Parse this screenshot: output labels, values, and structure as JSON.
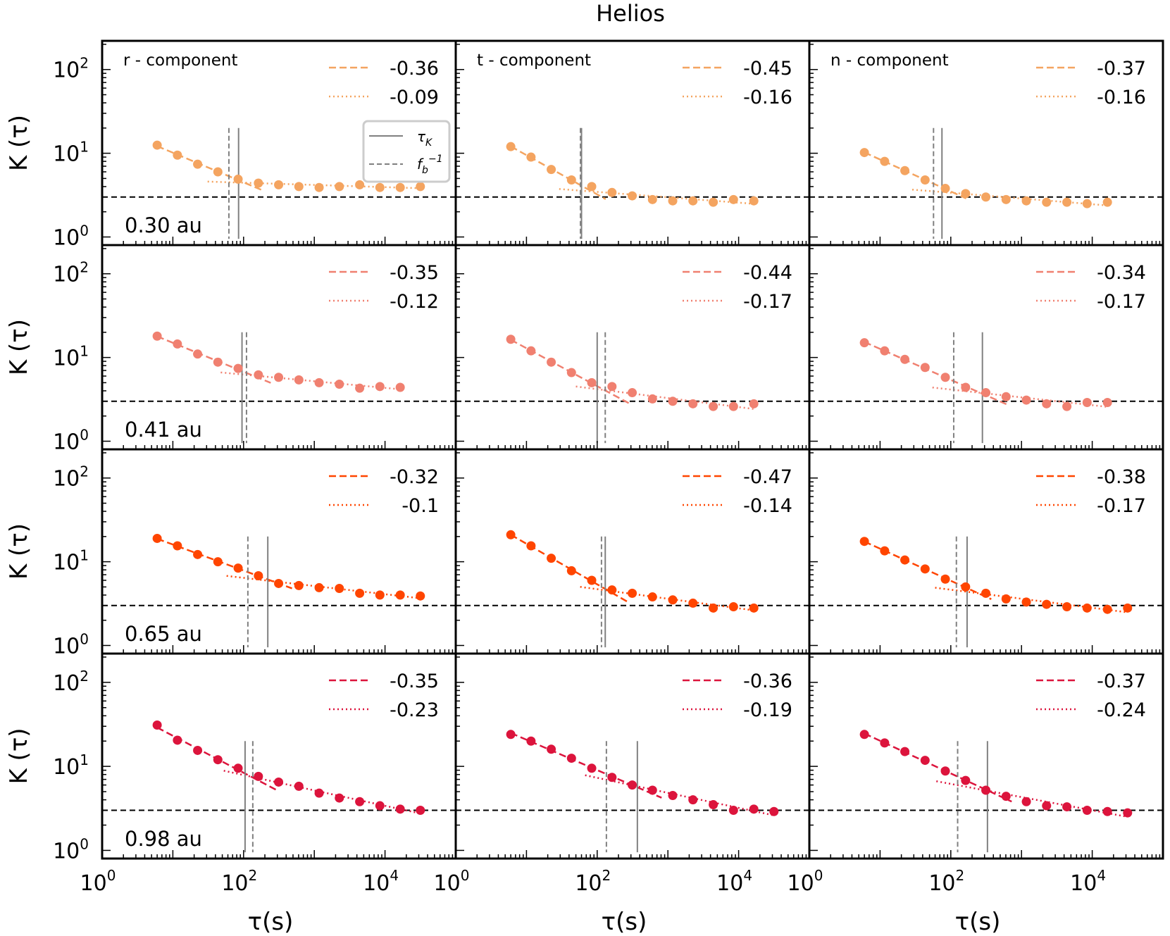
{
  "figure": {
    "title": "Helios"
  },
  "chart_data": {
    "type": "scatter",
    "title": "Helios",
    "xlabel": "τ(s)",
    "ylabel": "K (τ)",
    "xscale": "log",
    "yscale": "log",
    "xlim": [
      1,
      100000
    ],
    "ylim": [
      0.8,
      220
    ],
    "x_tick_labels": [
      "10",
      "10",
      "10",
      "10",
      "10",
      "10",
      "10",
      "10",
      "10"
    ],
    "x_tick_exponents": [
      "0",
      "2",
      "4",
      "0",
      "2",
      "4",
      "0",
      "2",
      "4"
    ],
    "y_tick_labels": [
      "10",
      "10",
      "10"
    ],
    "y_tick_exponents": [
      "0",
      "1",
      "2"
    ],
    "reference_line": {
      "y": 3,
      "style": "black dashed"
    },
    "legend_markers": {
      "tau_k": "τK",
      "fb_inv": "fb−1"
    },
    "legend_text": {
      "tau_k": {
        "base": "τ",
        "sub": "K"
      },
      "fb_inv": {
        "base": "f",
        "sub": "b",
        "sup": "−1"
      }
    },
    "columns": [
      "r - component",
      "t - component",
      "n - component"
    ],
    "rows": [
      {
        "distance": "0.30 au",
        "color": "#f4a460",
        "panels": [
          {
            "component": "r",
            "slope_dashed": "-0.36",
            "slope_dotted": "-0.09",
            "tau_k": 85,
            "fb_inv": 62,
            "points": [
              [
                6,
                12.5
              ],
              [
                11.6,
                9.5
              ],
              [
                22.4,
                7.4
              ],
              [
                43.3,
                6.0
              ],
              [
                83.7,
                4.9
              ],
              [
                162,
                4.4
              ],
              [
                313,
                4.2
              ],
              [
                605,
                4.0
              ],
              [
                1170,
                3.9
              ],
              [
                2260,
                4.0
              ],
              [
                4380,
                4.2
              ],
              [
                8460,
                3.9
              ],
              [
                16400,
                3.9
              ],
              [
                31600,
                4.0
              ]
            ]
          },
          {
            "component": "t",
            "slope_dashed": "-0.45",
            "slope_dotted": "-0.16",
            "tau_k": 60,
            "fb_inv": 58,
            "points": [
              [
                6,
                12.0
              ],
              [
                11.6,
                9.0
              ],
              [
                22.4,
                6.4
              ],
              [
                43.3,
                4.8
              ],
              [
                83.7,
                4.0
              ],
              [
                162,
                3.4
              ],
              [
                313,
                3.1
              ],
              [
                605,
                2.8
              ],
              [
                1170,
                2.7
              ],
              [
                2260,
                2.7
              ],
              [
                4380,
                2.6
              ],
              [
                8460,
                2.8
              ],
              [
                16400,
                2.7
              ]
            ]
          },
          {
            "component": "n",
            "slope_dashed": "-0.37",
            "slope_dotted": "-0.16",
            "tau_k": 75,
            "fb_inv": 57,
            "points": [
              [
                6,
                10.2
              ],
              [
                11.6,
                8.0
              ],
              [
                22.4,
                6.2
              ],
              [
                43.3,
                4.8
              ],
              [
                83.7,
                3.8
              ],
              [
                162,
                3.3
              ],
              [
                313,
                3.0
              ],
              [
                605,
                2.8
              ],
              [
                1170,
                2.7
              ],
              [
                2260,
                2.6
              ],
              [
                4380,
                2.6
              ],
              [
                8460,
                2.5
              ],
              [
                16400,
                2.6
              ]
            ]
          }
        ]
      },
      {
        "distance": "0.41 au",
        "color": "#f08070",
        "panels": [
          {
            "component": "r",
            "slope_dashed": "-0.35",
            "slope_dotted": "-0.12",
            "tau_k": 95,
            "fb_inv": 110,
            "points": [
              [
                6,
                18.0
              ],
              [
                11.6,
                14.5
              ],
              [
                22.4,
                11.0
              ],
              [
                43.3,
                8.8
              ],
              [
                83.7,
                7.4
              ],
              [
                162,
                6.2
              ],
              [
                313,
                5.8
              ],
              [
                605,
                5.4
              ],
              [
                1170,
                5.0
              ],
              [
                2260,
                4.8
              ],
              [
                4380,
                4.3
              ],
              [
                8460,
                4.5
              ],
              [
                16400,
                4.4
              ]
            ]
          },
          {
            "component": "t",
            "slope_dashed": "-0.44",
            "slope_dotted": "-0.17",
            "tau_k": 100,
            "fb_inv": 130,
            "points": [
              [
                6,
                16.5
              ],
              [
                11.6,
                12.0
              ],
              [
                22.4,
                8.8
              ],
              [
                43.3,
                6.6
              ],
              [
                83.7,
                5.0
              ],
              [
                162,
                4.5
              ],
              [
                313,
                3.8
              ],
              [
                605,
                3.2
              ],
              [
                1170,
                3.0
              ],
              [
                2260,
                2.8
              ],
              [
                4380,
                2.6
              ],
              [
                8460,
                2.6
              ],
              [
                16400,
                2.8
              ]
            ]
          },
          {
            "component": "n",
            "slope_dashed": "-0.34",
            "slope_dotted": "-0.17",
            "tau_k": 280,
            "fb_inv": 110,
            "points": [
              [
                6,
                15.0
              ],
              [
                11.6,
                12.0
              ],
              [
                22.4,
                9.5
              ],
              [
                43.3,
                7.6
              ],
              [
                83.7,
                5.8
              ],
              [
                162,
                4.4
              ],
              [
                313,
                3.8
              ],
              [
                605,
                3.4
              ],
              [
                1170,
                3.1
              ],
              [
                2260,
                2.8
              ],
              [
                4380,
                2.6
              ],
              [
                8460,
                2.9
              ],
              [
                16400,
                2.9
              ]
            ]
          }
        ]
      },
      {
        "distance": "0.65 au",
        "color": "#ff4500",
        "panels": [
          {
            "component": "r",
            "slope_dashed": "-0.32",
            "slope_dotted": "-0.1",
            "tau_k": 220,
            "fb_inv": 115,
            "points": [
              [
                6,
                19.0
              ],
              [
                11.6,
                15.5
              ],
              [
                22.4,
                12.2
              ],
              [
                43.3,
                10.0
              ],
              [
                83.7,
                8.4
              ],
              [
                162,
                6.8
              ],
              [
                313,
                5.5
              ],
              [
                605,
                5.2
              ],
              [
                1170,
                4.9
              ],
              [
                2260,
                4.8
              ],
              [
                4380,
                4.2
              ],
              [
                8460,
                4.0
              ],
              [
                16400,
                4.0
              ],
              [
                31600,
                3.9
              ]
            ]
          },
          {
            "component": "t",
            "slope_dashed": "-0.47",
            "slope_dotted": "-0.14",
            "tau_k": 130,
            "fb_inv": 115,
            "points": [
              [
                6,
                21.0
              ],
              [
                11.6,
                15.5
              ],
              [
                22.4,
                11.0
              ],
              [
                43.3,
                7.8
              ],
              [
                83.7,
                6.0
              ],
              [
                162,
                4.6
              ],
              [
                313,
                4.2
              ],
              [
                605,
                3.8
              ],
              [
                1170,
                3.5
              ],
              [
                2260,
                3.2
              ],
              [
                4380,
                2.8
              ],
              [
                8460,
                2.9
              ],
              [
                16400,
                2.8
              ]
            ]
          },
          {
            "component": "n",
            "slope_dashed": "-0.38",
            "slope_dotted": "-0.17",
            "tau_k": 170,
            "fb_inv": 120,
            "points": [
              [
                6,
                17.5
              ],
              [
                11.6,
                13.5
              ],
              [
                22.4,
                10.5
              ],
              [
                43.3,
                8.2
              ],
              [
                83.7,
                6.2
              ],
              [
                162,
                5.0
              ],
              [
                313,
                4.2
              ],
              [
                605,
                3.6
              ],
              [
                1170,
                3.3
              ],
              [
                2260,
                3.1
              ],
              [
                4380,
                2.9
              ],
              [
                8460,
                2.8
              ],
              [
                16400,
                2.7
              ],
              [
                31600,
                2.8
              ]
            ]
          }
        ]
      },
      {
        "distance": "0.98 au",
        "color": "#dc143c",
        "panels": [
          {
            "component": "r",
            "slope_dashed": "-0.35",
            "slope_dotted": "-0.23",
            "tau_k": 105,
            "fb_inv": 135,
            "points": [
              [
                6,
                31.0
              ],
              [
                11.6,
                20.5
              ],
              [
                22.4,
                15.5
              ],
              [
                43.3,
                12.0
              ],
              [
                83.7,
                9.5
              ],
              [
                162,
                7.6
              ],
              [
                313,
                6.5
              ],
              [
                605,
                5.8
              ],
              [
                1170,
                4.8
              ],
              [
                2260,
                4.2
              ],
              [
                4380,
                3.8
              ],
              [
                8460,
                3.4
              ],
              [
                16400,
                3.1
              ],
              [
                31600,
                3.0
              ]
            ]
          },
          {
            "component": "t",
            "slope_dashed": "-0.36",
            "slope_dotted": "-0.19",
            "tau_k": 370,
            "fb_inv": 135,
            "points": [
              [
                6,
                24.0
              ],
              [
                11.6,
                20.0
              ],
              [
                22.4,
                16.0
              ],
              [
                43.3,
                12.5
              ],
              [
                83.7,
                9.5
              ],
              [
                162,
                7.4
              ],
              [
                313,
                6.0
              ],
              [
                605,
                5.2
              ],
              [
                1170,
                4.5
              ],
              [
                2260,
                4.0
              ],
              [
                4380,
                3.5
              ],
              [
                8460,
                3.0
              ],
              [
                16400,
                3.1
              ],
              [
                31600,
                2.9
              ]
            ]
          },
          {
            "component": "n",
            "slope_dashed": "-0.37",
            "slope_dotted": "-0.24",
            "tau_k": 330,
            "fb_inv": 125,
            "points": [
              [
                6,
                24.0
              ],
              [
                11.6,
                19.0
              ],
              [
                22.4,
                15.0
              ],
              [
                43.3,
                11.8
              ],
              [
                83.7,
                8.8
              ],
              [
                162,
                6.8
              ],
              [
                313,
                5.2
              ],
              [
                605,
                4.4
              ],
              [
                1170,
                3.8
              ],
              [
                2260,
                3.4
              ],
              [
                4380,
                3.3
              ],
              [
                8460,
                3.0
              ],
              [
                16400,
                2.9
              ],
              [
                31600,
                2.8
              ]
            ]
          }
        ]
      }
    ]
  }
}
